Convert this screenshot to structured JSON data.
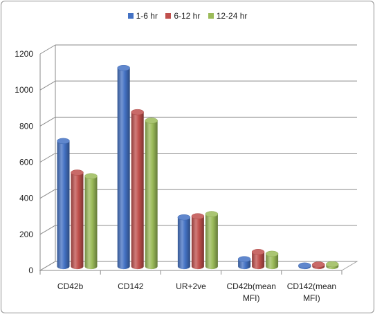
{
  "chart_data": {
    "type": "bar",
    "title": "",
    "xlabel": "",
    "ylabel": "",
    "ylim": [
      0,
      1200
    ],
    "yticks": [
      "0",
      "200",
      "400",
      "600",
      "800",
      "1000",
      "1200"
    ],
    "grid": true,
    "style": "3d-cylinder",
    "legend_position": "top",
    "categories": [
      "CD42b",
      "CD142",
      "UR+2ve",
      "CD42b(mean MFI)",
      "CD142(mean MFI)"
    ],
    "category_lines": [
      [
        "CD42b"
      ],
      [
        "CD142"
      ],
      [
        "UR+2ve"
      ],
      [
        "CD42b(mean",
        "MFI)"
      ],
      [
        "CD142(mean",
        "MFI)"
      ]
    ],
    "series": [
      {
        "name": "1-6 hr",
        "color": "#4472c4",
        "values": [
          695,
          1100,
          272,
          40,
          5
        ]
      },
      {
        "name": "6-12 hr",
        "color": "#c0504d",
        "values": [
          520,
          855,
          278,
          80,
          10
        ]
      },
      {
        "name": "12-24 hr",
        "color": "#9bbb59",
        "values": [
          500,
          808,
          290,
          70,
          12
        ]
      }
    ]
  }
}
